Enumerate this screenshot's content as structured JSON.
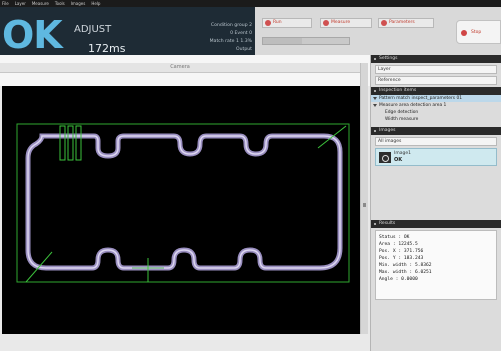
{
  "menubar": {
    "items": [
      "File",
      "Layer",
      "Measure",
      "Tools",
      "Images",
      "Help"
    ]
  },
  "header": {
    "status": "OK",
    "mode": "ADJUST",
    "timing": "172ms",
    "info_lines": [
      "Condition group 2",
      "0 Event 0",
      "Match rate 1 1.3%",
      "Output"
    ]
  },
  "toolbar": {
    "buttons": [
      "Run",
      "Measure",
      "Parameters"
    ],
    "side_button": "Stop",
    "progress_fraction": 0.45
  },
  "view": {
    "ruler_label": "Camera"
  },
  "panel": {
    "settings_header": "Settings",
    "source_fields": [
      "Layer",
      "Reference"
    ],
    "tree_header": "Inspection items",
    "tree_items": [
      "Pattern match inspect_parameters 01",
      "Measure area detection area 1",
      "Edge detection",
      "Width measure"
    ],
    "images_header": "Images",
    "image_tab": "All images",
    "thumb": {
      "name": "Image1",
      "tag": "OK"
    },
    "results_header": "Results",
    "results": [
      "Status : OK",
      "Area : 12245.5",
      "Pos. X : 371.756",
      "Pos. Y : 183.243",
      "Min. width : 5.8362",
      "Max. width : 6.0251",
      "Angle : 0.0000"
    ]
  }
}
